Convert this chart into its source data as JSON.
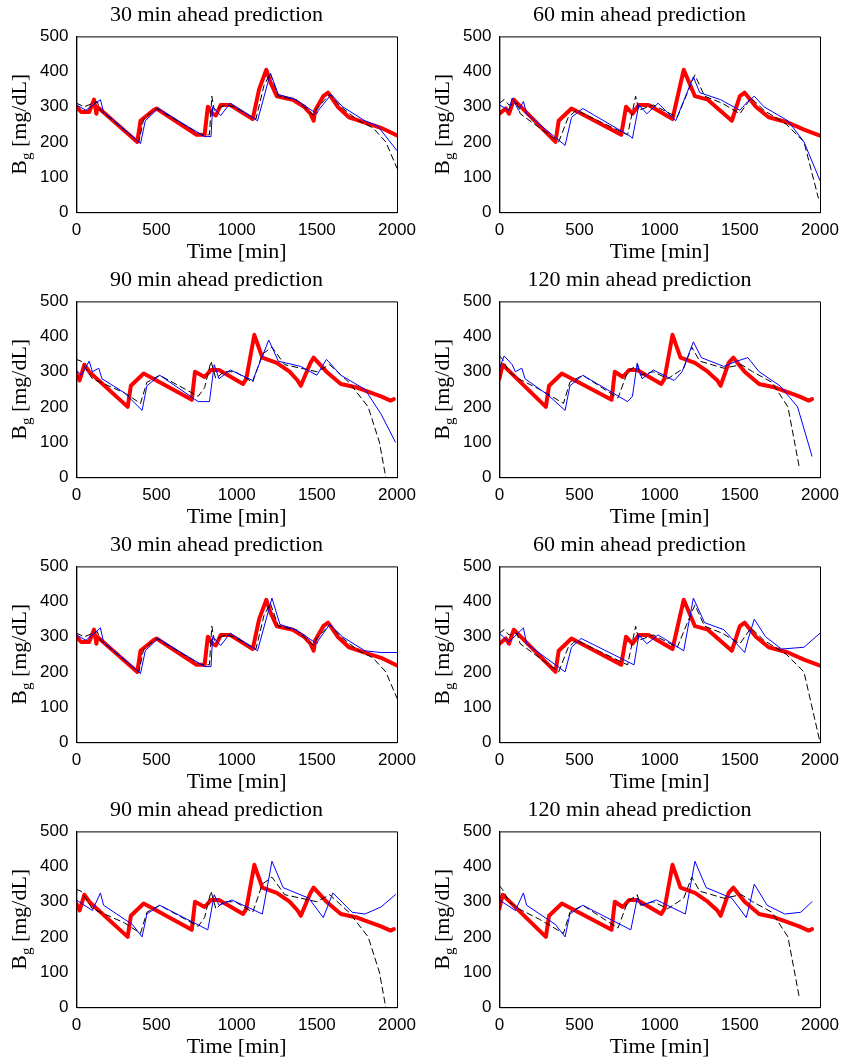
{
  "chart_data": [
    {
      "type": "line",
      "title": "30 min ahead prediction",
      "xlabel": "Time [min]",
      "ylabel": "B$_{g}$ [mg/dL]",
      "xlim": [
        0,
        2000
      ],
      "xticks": [
        0,
        500,
        1000,
        1500,
        2000
      ],
      "ylim": [
        0,
        500
      ],
      "yticks": [
        0,
        100,
        200,
        300,
        400,
        500
      ],
      "grid": false,
      "legend": false,
      "series": [
        {
          "color": "#0000ff",
          "line_style": "solid",
          "x": [
            0,
            60,
            150,
            170,
            390,
            400,
            430,
            510,
            800,
            840,
            850,
            900,
            960,
            1130,
            1210,
            1260,
            1370,
            1500,
            1510,
            1590,
            1660,
            1800,
            1880,
            2000
          ],
          "values": [
            305,
            290,
            320,
            285,
            200,
            195,
            260,
            295,
            215,
            215,
            300,
            275,
            310,
            260,
            395,
            335,
            320,
            280,
            290,
            335,
            300,
            260,
            245,
            175
          ]
        },
        {
          "color": "#000000",
          "line_style": "dashed",
          "x": [
            0,
            50,
            130,
            150,
            390,
            420,
            500,
            780,
            830,
            845,
            860,
            930,
            980,
            1120,
            1170,
            1210,
            1260,
            1370,
            1480,
            1500,
            1580,
            1650,
            1760,
            1850,
            1930,
            2000
          ],
          "values": [
            310,
            300,
            315,
            290,
            200,
            265,
            295,
            220,
            220,
            330,
            290,
            305,
            300,
            265,
            360,
            395,
            330,
            320,
            275,
            295,
            335,
            300,
            260,
            240,
            200,
            125
          ]
        },
        {
          "color": "#ff0000",
          "line_style": "solid",
          "x": [
            0,
            30,
            80,
            110,
            125,
            130,
            380,
            400,
            480,
            500,
            750,
            800,
            820,
            850,
            870,
            900,
            960,
            1100,
            1140,
            1185,
            1210,
            1250,
            1350,
            1420,
            1460,
            1480,
            1490,
            1540,
            1570,
            1630,
            1700,
            1800,
            1900,
            2000
          ],
          "values": [
            300,
            285,
            285,
            320,
            280,
            300,
            200,
            260,
            290,
            295,
            220,
            220,
            300,
            280,
            275,
            305,
            305,
            265,
            350,
            405,
            370,
            330,
            320,
            300,
            280,
            260,
            290,
            330,
            340,
            300,
            270,
            255,
            240,
            218
          ]
        }
      ]
    },
    {
      "type": "line",
      "title": "60 min ahead prediction",
      "xlabel": "Time [min]",
      "ylabel": "B$_{g}$ [mg/dL]",
      "xlim": [
        0,
        2000
      ],
      "xticks": [
        0,
        500,
        1000,
        1500,
        2000
      ],
      "ylim": [
        0,
        500
      ],
      "yticks": [
        0,
        100,
        200,
        300,
        400,
        500
      ],
      "grid": false,
      "legend": false,
      "series": [
        {
          "color": "#0000ff",
          "line_style": "solid",
          "x": [
            0,
            60,
            80,
            120,
            150,
            170,
            410,
            450,
            520,
            820,
            830,
            870,
            920,
            990,
            1100,
            1210,
            1250,
            1380,
            1500,
            1550,
            1590,
            1650,
            1800,
            1900,
            2000
          ],
          "values": [
            305,
            290,
            325,
            290,
            315,
            280,
            190,
            270,
            295,
            215,
            210,
            305,
            280,
            310,
            260,
            385,
            340,
            320,
            290,
            315,
            330,
            300,
            260,
            200,
            90
          ]
        },
        {
          "color": "#000000",
          "line_style": "dashed",
          "x": [
            0,
            30,
            60,
            110,
            130,
            370,
            430,
            480,
            800,
            850,
            870,
            960,
            1110,
            1200,
            1220,
            1280,
            1390,
            1500,
            1570,
            1650,
            1790,
            1900,
            1990
          ],
          "values": [
            310,
            320,
            305,
            310,
            280,
            200,
            270,
            290,
            220,
            330,
            290,
            305,
            270,
            370,
            390,
            330,
            310,
            280,
            325,
            290,
            250,
            200,
            40
          ]
        },
        {
          "color": "#ff0000",
          "line_style": "solid",
          "x": [
            0,
            40,
            60,
            90,
            350,
            370,
            450,
            760,
            790,
            830,
            870,
            930,
            1080,
            1150,
            1220,
            1300,
            1400,
            1450,
            1500,
            1530,
            1600,
            1680,
            1800,
            1900,
            2000
          ],
          "values": [
            280,
            295,
            280,
            320,
            200,
            260,
            295,
            220,
            300,
            280,
            305,
            305,
            265,
            405,
            330,
            320,
            280,
            260,
            330,
            340,
            300,
            270,
            255,
            235,
            218
          ]
        }
      ]
    },
    {
      "type": "line",
      "title": "90 min ahead prediction",
      "xlabel": "Time [min]",
      "ylabel": "B$_{g}$ [mg/dL]",
      "xlim": [
        0,
        2000
      ],
      "xticks": [
        0,
        500,
        1000,
        1500,
        2000
      ],
      "ylim": [
        0,
        500
      ],
      "yticks": [
        0,
        100,
        200,
        300,
        400,
        500
      ],
      "grid": false,
      "legend": false,
      "series": [
        {
          "color": "#0000ff",
          "line_style": "solid",
          "x": [
            0,
            30,
            80,
            100,
            140,
            160,
            300,
            410,
            440,
            520,
            760,
            830,
            860,
            890,
            960,
            1100,
            1200,
            1260,
            1400,
            1500,
            1560,
            1650,
            1800,
            1900,
            1990
          ],
          "values": [
            305,
            290,
            330,
            300,
            310,
            280,
            240,
            190,
            260,
            290,
            215,
            215,
            320,
            280,
            305,
            275,
            390,
            330,
            315,
            290,
            335,
            290,
            250,
            180,
            100
          ]
        },
        {
          "color": "#000000",
          "line_style": "dashed",
          "x": [
            0,
            30,
            70,
            100,
            300,
            400,
            440,
            520,
            760,
            800,
            840,
            870,
            920,
            990,
            1100,
            1160,
            1220,
            1300,
            1400,
            1500,
            1580,
            1700,
            1820,
            1890,
            1930
          ],
          "values": [
            335,
            330,
            300,
            280,
            240,
            210,
            270,
            290,
            230,
            255,
            330,
            280,
            300,
            300,
            270,
            350,
            370,
            320,
            310,
            300,
            320,
            270,
            200,
            100,
            0
          ]
        },
        {
          "color": "#ff0000",
          "line_style": "solid",
          "x": [
            0,
            20,
            50,
            80,
            320,
            340,
            420,
            720,
            740,
            800,
            840,
            890,
            1040,
            1060,
            1110,
            1160,
            1250,
            1330,
            1380,
            1400,
            1460,
            1480,
            1560,
            1650,
            1750,
            1900,
            1960,
            1980
          ],
          "values": [
            295,
            275,
            320,
            300,
            200,
            260,
            295,
            220,
            300,
            285,
            305,
            305,
            265,
            280,
            405,
            340,
            325,
            300,
            275,
            260,
            325,
            340,
            300,
            265,
            255,
            230,
            218,
            222
          ]
        }
      ]
    },
    {
      "type": "line",
      "title": "120 min ahead prediction",
      "xlabel": "Time [min]",
      "ylabel": "B$_{g}$ [mg/dL]",
      "xlim": [
        0,
        2000
      ],
      "xticks": [
        0,
        500,
        1000,
        1500,
        2000
      ],
      "ylim": [
        0,
        500
      ],
      "yticks": [
        0,
        100,
        200,
        300,
        400,
        500
      ],
      "grid": false,
      "legend": false,
      "series": [
        {
          "color": "#0000ff",
          "line_style": "solid",
          "x": [
            0,
            30,
            80,
            100,
            140,
            160,
            300,
            410,
            440,
            520,
            800,
            830,
            860,
            890,
            960,
            1090,
            1140,
            1210,
            1260,
            1400,
            1480,
            1550,
            1620,
            1750,
            1860,
            1950
          ],
          "values": [
            310,
            345,
            320,
            300,
            310,
            280,
            235,
            190,
            260,
            290,
            215,
            230,
            325,
            280,
            305,
            275,
            300,
            385,
            340,
            315,
            330,
            340,
            300,
            260,
            200,
            60
          ]
        },
        {
          "color": "#000000",
          "line_style": "dashed",
          "x": [
            0,
            20,
            60,
            120,
            250,
            400,
            440,
            520,
            740,
            800,
            860,
            880,
            960,
            1050,
            1150,
            1200,
            1250,
            1400,
            1510,
            1580,
            1700,
            1800,
            1870
          ],
          "values": [
            345,
            335,
            300,
            280,
            250,
            210,
            270,
            290,
            225,
            300,
            320,
            290,
            300,
            280,
            310,
            370,
            330,
            310,
            320,
            300,
            270,
            200,
            30
          ]
        },
        {
          "color": "#ff0000",
          "line_style": "solid",
          "x": [
            0,
            20,
            290,
            310,
            390,
            700,
            720,
            770,
            810,
            860,
            1010,
            1030,
            1080,
            1130,
            1220,
            1300,
            1360,
            1380,
            1430,
            1460,
            1530,
            1620,
            1720,
            1870,
            1930,
            1950
          ],
          "values": [
            280,
            320,
            200,
            260,
            295,
            220,
            300,
            285,
            305,
            305,
            265,
            280,
            405,
            340,
            325,
            300,
            275,
            260,
            325,
            340,
            300,
            265,
            255,
            230,
            218,
            222
          ]
        }
      ]
    },
    {
      "type": "line",
      "title": "30 min ahead prediction",
      "xlabel": "Time [min]",
      "ylabel": "B$_{g}$ [mg/dL]",
      "xlim": [
        0,
        2000
      ],
      "xticks": [
        0,
        500,
        1000,
        1500,
        2000
      ],
      "ylim": [
        0,
        500
      ],
      "yticks": [
        0,
        100,
        200,
        300,
        400,
        500
      ],
      "grid": false,
      "legend": false,
      "series": [
        {
          "color": "#0000ff",
          "line_style": "solid",
          "x": [
            0,
            60,
            150,
            170,
            390,
            400,
            430,
            510,
            800,
            840,
            850,
            900,
            960,
            1130,
            1220,
            1270,
            1370,
            1500,
            1510,
            1580,
            1660,
            1800,
            1900,
            2000
          ],
          "values": [
            305,
            290,
            325,
            285,
            200,
            195,
            260,
            295,
            215,
            215,
            300,
            275,
            310,
            260,
            410,
            335,
            320,
            280,
            290,
            335,
            300,
            260,
            255,
            255
          ]
        },
        {
          "color": "#000000",
          "line_style": "dashed",
          "x": [
            0,
            50,
            130,
            150,
            390,
            420,
            500,
            780,
            830,
            845,
            860,
            930,
            980,
            1120,
            1170,
            1210,
            1260,
            1370,
            1480,
            1500,
            1580,
            1650,
            1760,
            1850,
            1930,
            2000
          ],
          "values": [
            310,
            300,
            315,
            290,
            200,
            265,
            295,
            220,
            220,
            330,
            290,
            305,
            300,
            265,
            360,
            395,
            330,
            320,
            275,
            295,
            335,
            300,
            260,
            240,
            200,
            125
          ]
        },
        {
          "color": "#ff0000",
          "line_style": "solid",
          "x": [
            0,
            30,
            80,
            110,
            125,
            130,
            380,
            400,
            480,
            500,
            750,
            800,
            820,
            850,
            870,
            900,
            960,
            1100,
            1140,
            1185,
            1210,
            1250,
            1350,
            1420,
            1460,
            1480,
            1490,
            1540,
            1570,
            1630,
            1700,
            1800,
            1900,
            2000
          ],
          "values": [
            300,
            285,
            285,
            320,
            280,
            300,
            200,
            260,
            290,
            295,
            220,
            220,
            300,
            280,
            275,
            305,
            305,
            265,
            350,
            405,
            370,
            330,
            320,
            300,
            280,
            260,
            290,
            330,
            340,
            300,
            270,
            255,
            240,
            218
          ]
        }
      ]
    },
    {
      "type": "line",
      "title": "60 min ahead prediction",
      "xlabel": "Time [min]",
      "ylabel": "B$_{g}$ [mg/dL]",
      "xlim": [
        0,
        2000
      ],
      "xticks": [
        0,
        500,
        1000,
        1500,
        2000
      ],
      "ylim": [
        0,
        500
      ],
      "yticks": [
        0,
        100,
        200,
        300,
        400,
        500
      ],
      "grid": false,
      "legend": false,
      "series": [
        {
          "color": "#0000ff",
          "line_style": "solid",
          "x": [
            0,
            60,
            150,
            170,
            410,
            450,
            510,
            840,
            870,
            920,
            990,
            1150,
            1210,
            1280,
            1400,
            1530,
            1550,
            1590,
            1660,
            1760,
            1900,
            2000
          ],
          "values": [
            310,
            285,
            325,
            280,
            200,
            270,
            295,
            220,
            305,
            280,
            305,
            260,
            410,
            340,
            320,
            255,
            290,
            350,
            300,
            265,
            270,
            310
          ]
        },
        {
          "color": "#000000",
          "line_style": "dashed",
          "x": [
            0,
            30,
            60,
            110,
            130,
            370,
            430,
            480,
            800,
            850,
            870,
            960,
            1110,
            1200,
            1220,
            1280,
            1390,
            1500,
            1570,
            1650,
            1790,
            1900,
            2000
          ],
          "values": [
            310,
            320,
            305,
            310,
            280,
            200,
            270,
            290,
            220,
            330,
            290,
            305,
            270,
            370,
            390,
            330,
            310,
            280,
            325,
            290,
            250,
            200,
            0
          ]
        },
        {
          "color": "#ff0000",
          "line_style": "solid",
          "x": [
            0,
            40,
            60,
            90,
            350,
            370,
            450,
            760,
            790,
            830,
            870,
            930,
            1080,
            1150,
            1220,
            1300,
            1400,
            1450,
            1500,
            1530,
            1600,
            1680,
            1800,
            1900,
            2000
          ],
          "values": [
            280,
            295,
            280,
            320,
            200,
            260,
            295,
            220,
            300,
            280,
            305,
            305,
            265,
            405,
            330,
            320,
            280,
            260,
            330,
            340,
            300,
            270,
            255,
            235,
            218
          ]
        }
      ]
    },
    {
      "type": "line",
      "title": "90 min ahead prediction",
      "xlabel": "Time [min]",
      "ylabel": "B$_{g}$ [mg/dL]",
      "xlim": [
        0,
        2000
      ],
      "xticks": [
        0,
        500,
        1000,
        1500,
        2000
      ],
      "ylim": [
        0,
        500
      ],
      "yticks": [
        0,
        100,
        200,
        300,
        400,
        500
      ],
      "grid": false,
      "legend": false,
      "series": [
        {
          "color": "#0000ff",
          "line_style": "solid",
          "x": [
            0,
            100,
            150,
            170,
            350,
            410,
            440,
            520,
            820,
            860,
            890,
            970,
            1160,
            1220,
            1290,
            1450,
            1540,
            1570,
            1600,
            1720,
            1800,
            1900,
            1990
          ],
          "values": [
            305,
            275,
            325,
            290,
            235,
            200,
            265,
            290,
            220,
            320,
            290,
            305,
            265,
            415,
            340,
            310,
            255,
            290,
            325,
            270,
            265,
            285,
            320
          ]
        },
        {
          "color": "#000000",
          "line_style": "dashed",
          "x": [
            0,
            30,
            70,
            100,
            300,
            400,
            440,
            520,
            760,
            800,
            840,
            870,
            920,
            990,
            1100,
            1160,
            1220,
            1300,
            1400,
            1500,
            1580,
            1700,
            1820,
            1890,
            1930
          ],
          "values": [
            335,
            330,
            300,
            280,
            240,
            210,
            270,
            290,
            230,
            255,
            330,
            280,
            300,
            300,
            270,
            350,
            370,
            320,
            310,
            300,
            320,
            270,
            200,
            100,
            0
          ]
        },
        {
          "color": "#ff0000",
          "line_style": "solid",
          "x": [
            0,
            20,
            50,
            80,
            320,
            340,
            420,
            720,
            740,
            800,
            840,
            890,
            1040,
            1060,
            1110,
            1160,
            1250,
            1330,
            1380,
            1400,
            1460,
            1480,
            1560,
            1650,
            1750,
            1900,
            1960,
            1980
          ],
          "values": [
            295,
            275,
            320,
            300,
            200,
            260,
            295,
            220,
            300,
            285,
            305,
            305,
            265,
            280,
            405,
            340,
            325,
            300,
            275,
            260,
            325,
            340,
            300,
            265,
            255,
            230,
            218,
            222
          ]
        }
      ]
    },
    {
      "type": "line",
      "title": "120 min ahead prediction",
      "xlabel": "Time [min]",
      "ylabel": "B$_{g}$ [mg/dL]",
      "xlim": [
        0,
        2000
      ],
      "xticks": [
        0,
        500,
        1000,
        1500,
        2000
      ],
      "ylim": [
        0,
        500
      ],
      "yticks": [
        0,
        100,
        200,
        300,
        400,
        500
      ],
      "grid": false,
      "legend": false,
      "series": [
        {
          "color": "#0000ff",
          "line_style": "solid",
          "x": [
            0,
            100,
            150,
            170,
            350,
            410,
            440,
            520,
            820,
            860,
            890,
            980,
            1160,
            1220,
            1290,
            1450,
            1540,
            1560,
            1590,
            1670,
            1780,
            1880,
            1950
          ],
          "values": [
            305,
            275,
            325,
            290,
            235,
            200,
            265,
            290,
            220,
            310,
            290,
            305,
            265,
            415,
            340,
            310,
            255,
            290,
            350,
            290,
            265,
            270,
            300
          ]
        },
        {
          "color": "#000000",
          "line_style": "dashed",
          "x": [
            0,
            20,
            60,
            120,
            250,
            400,
            440,
            520,
            740,
            800,
            860,
            880,
            960,
            1050,
            1150,
            1200,
            1250,
            1400,
            1510,
            1580,
            1700,
            1800,
            1870
          ],
          "values": [
            345,
            335,
            300,
            280,
            250,
            210,
            270,
            290,
            225,
            300,
            320,
            290,
            300,
            280,
            310,
            370,
            330,
            310,
            320,
            300,
            270,
            200,
            30
          ]
        },
        {
          "color": "#ff0000",
          "line_style": "solid",
          "x": [
            0,
            20,
            290,
            310,
            390,
            700,
            720,
            770,
            810,
            860,
            1010,
            1030,
            1080,
            1130,
            1220,
            1300,
            1360,
            1380,
            1430,
            1460,
            1530,
            1620,
            1720,
            1870,
            1930,
            1950
          ],
          "values": [
            280,
            320,
            200,
            260,
            295,
            220,
            300,
            285,
            305,
            305,
            265,
            280,
            405,
            340,
            325,
            300,
            275,
            260,
            325,
            340,
            300,
            265,
            255,
            230,
            218,
            222
          ]
        }
      ]
    }
  ]
}
